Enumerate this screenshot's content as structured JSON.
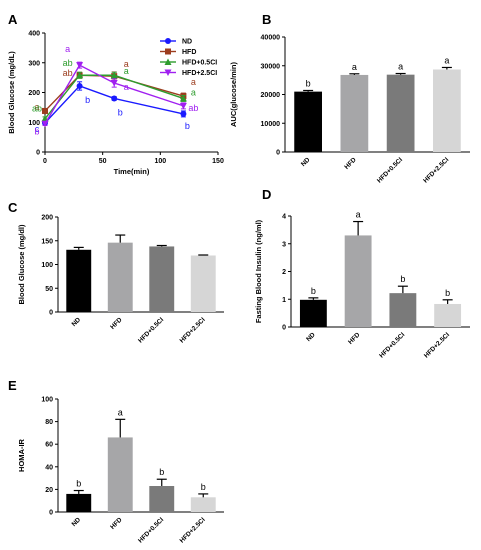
{
  "colors": {
    "nd": "#1a1aff",
    "hfd": "#9c3d1f",
    "hfd_05": "#2e9c2e",
    "hfd_25": "#a020f0",
    "bar_nd": "#000000",
    "bar_hfd": "#a6a6a8",
    "bar_hfd_05": "#7a7a7a",
    "bar_hfd_25": "#d6d6d6",
    "sig_text": "#000000"
  },
  "chart_data": [
    {
      "id": "A",
      "panel_label": "A",
      "type": "line",
      "xlabel": "Time(min)",
      "ylabel": "Blood Glucose (mg/dL)",
      "xlim": [
        0,
        150
      ],
      "ylim": [
        0,
        400
      ],
      "xticks": [
        0,
        50,
        100,
        150
      ],
      "yticks": [
        0,
        100,
        200,
        300,
        400
      ],
      "x": [
        0,
        30,
        60,
        120
      ],
      "legend_position": "top-right",
      "series": [
        {
          "name": "ND",
          "color_key": "nd",
          "marker": "circle",
          "values": [
            98,
            222,
            180,
            128
          ],
          "errors": [
            6,
            14,
            6,
            10
          ],
          "labels": [
            "c",
            "b",
            "b",
            "b"
          ]
        },
        {
          "name": "HFD",
          "color_key": "hfd",
          "marker": "square",
          "values": [
            138,
            258,
            255,
            188
          ],
          "errors": [
            8,
            10,
            14,
            10
          ],
          "labels": [
            "a",
            "ab",
            "a",
            "a"
          ]
        },
        {
          "name": "HFD+0.5CI",
          "color_key": "hfd_05",
          "marker": "triangle-up",
          "values": [
            112,
            258,
            258,
            180
          ],
          "errors": [
            6,
            10,
            10,
            10
          ],
          "labels": [
            "ab",
            "ab",
            "a",
            "a"
          ]
        },
        {
          "name": "HFD+2.5CI",
          "color_key": "hfd_25",
          "marker": "triangle-down",
          "values": [
            95,
            292,
            232,
            155
          ],
          "errors": [
            6,
            10,
            14,
            10
          ],
          "labels": [
            "b",
            "a",
            "a",
            "ab"
          ]
        }
      ]
    },
    {
      "id": "B",
      "panel_label": "B",
      "type": "bar",
      "ylabel": "AUC(glucose/min)",
      "ylim": [
        0,
        40000
      ],
      "yticks": [
        0,
        10000,
        20000,
        30000,
        40000
      ],
      "categories": [
        "ND",
        "HFD",
        "HFD+0.5CI",
        "HFD+2.5CI"
      ],
      "values": [
        21000,
        26800,
        26900,
        28700
      ],
      "errors": [
        400,
        400,
        400,
        700
      ],
      "labels": [
        "b",
        "a",
        "a",
        "a"
      ]
    },
    {
      "id": "C",
      "panel_label": "C",
      "type": "bar",
      "ylabel": "Blood Glucose (mg/dl)",
      "ylim": [
        0,
        200
      ],
      "yticks": [
        0,
        50,
        100,
        150,
        200
      ],
      "categories": [
        "ND",
        "HFD",
        "HFD+0.5CI",
        "HFD+2.5CI"
      ],
      "values": [
        131,
        146,
        138,
        119
      ],
      "errors": [
        5,
        16,
        2,
        1
      ],
      "labels": [
        "",
        "",
        "",
        ""
      ]
    },
    {
      "id": "D",
      "panel_label": "D",
      "type": "bar",
      "ylabel": "Fasting Blood Insulin (ng/ml)",
      "ylim": [
        0,
        4
      ],
      "yticks": [
        0,
        1,
        2,
        3,
        4
      ],
      "categories": [
        "ND",
        "HFD",
        "HFD+0.5CI",
        "HFD+2.5CI"
      ],
      "values": [
        0.98,
        3.3,
        1.22,
        0.83
      ],
      "errors": [
        0.07,
        0.5,
        0.25,
        0.15
      ],
      "labels": [
        "b",
        "a",
        "b",
        "b"
      ]
    },
    {
      "id": "E",
      "panel_label": "E",
      "type": "bar",
      "ylabel": "HOMA-IR",
      "ylim": [
        0,
        100
      ],
      "yticks": [
        0,
        20,
        40,
        60,
        80,
        100
      ],
      "categories": [
        "ND",
        "HFD",
        "HFD+0.5CI",
        "HFD+2.5CI"
      ],
      "values": [
        16,
        66,
        23,
        13
      ],
      "errors": [
        3,
        16,
        6,
        3
      ],
      "labels": [
        "b",
        "a",
        "b",
        "b"
      ]
    }
  ]
}
